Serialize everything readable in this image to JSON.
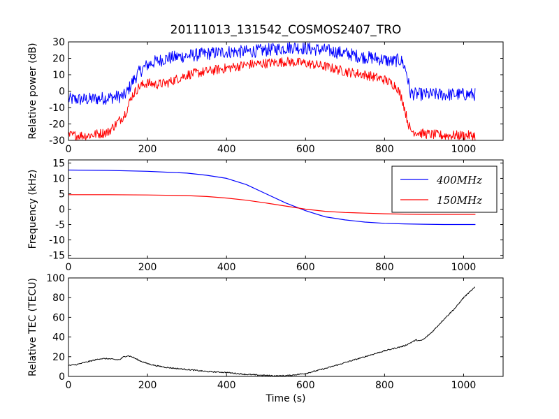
{
  "title": "20111013_131542_COSMOS2407_TRO",
  "colors": {
    "blue": "#0000ff",
    "red": "#ff0000",
    "black": "#000000"
  },
  "chart_data": [
    {
      "type": "line",
      "ylabel": "Relative power (dB)",
      "xlim": [
        0,
        1100
      ],
      "ylim": [
        -30,
        30
      ],
      "xticks": [
        "0",
        "200",
        "400",
        "600",
        "800",
        "1000"
      ],
      "yticks": [
        "30",
        "20",
        "10",
        "0",
        "-10",
        "-20",
        "-30"
      ],
      "grid": false,
      "series": [
        {
          "color": "blue",
          "noise": 4,
          "x": [
            0,
            50,
            100,
            140,
            150,
            160,
            180,
            200,
            220,
            250,
            280,
            320,
            360,
            400,
            450,
            500,
            540,
            570,
            600,
            650,
            700,
            740,
            780,
            800,
            820,
            835,
            845,
            855,
            865,
            880,
            900,
            950,
            1000,
            1030
          ],
          "y": [
            -5,
            -5,
            -4,
            -3,
            0,
            5,
            12,
            16,
            18,
            20,
            21,
            22,
            23,
            24,
            24,
            25,
            26,
            27,
            26,
            25,
            23,
            21,
            20,
            19,
            18,
            19,
            18,
            12,
            -1,
            -2,
            -2,
            -2,
            -2,
            -2
          ]
        },
        {
          "color": "red",
          "noise": 3,
          "x": [
            0,
            50,
            100,
            120,
            140,
            150,
            160,
            180,
            200,
            220,
            250,
            280,
            300,
            350,
            400,
            450,
            500,
            550,
            600,
            650,
            700,
            750,
            800,
            830,
            845,
            855,
            865,
            880,
            900,
            950,
            1000,
            1030
          ],
          "y": [
            -27,
            -27,
            -25,
            -20,
            -15,
            -10,
            -3,
            3,
            5,
            4,
            5,
            8,
            10,
            12,
            14,
            16,
            17,
            18,
            17,
            15,
            12,
            10,
            7,
            3,
            -5,
            -15,
            -24,
            -25,
            -26,
            -27,
            -27,
            -27
          ]
        }
      ]
    },
    {
      "type": "line",
      "ylabel": "Frequency (kHz)",
      "xlim": [
        0,
        1100
      ],
      "ylim": [
        -16,
        16
      ],
      "xticks": [
        "0",
        "200",
        "400",
        "600",
        "800",
        "1000"
      ],
      "yticks": [
        "15",
        "10",
        "5",
        "0",
        "-5",
        "-10",
        "-15"
      ],
      "grid": false,
      "legend": "top-right",
      "series": [
        {
          "name": "400MHz",
          "color": "blue",
          "x": [
            0,
            100,
            200,
            250,
            300,
            350,
            400,
            450,
            500,
            550,
            600,
            650,
            700,
            750,
            800,
            850,
            900,
            950,
            1000,
            1030
          ],
          "y": [
            12.7,
            12.6,
            12.3,
            12.0,
            11.7,
            11.0,
            10.0,
            8.0,
            5.0,
            2.0,
            -0.5,
            -2.5,
            -3.5,
            -4.2,
            -4.6,
            -4.8,
            -4.9,
            -5.0,
            -5.0,
            -5.0
          ]
        },
        {
          "name": "150MHz",
          "color": "red",
          "x": [
            0,
            100,
            200,
            300,
            350,
            400,
            450,
            500,
            550,
            600,
            650,
            700,
            750,
            800,
            850,
            900,
            950,
            1000,
            1030
          ],
          "y": [
            4.7,
            4.7,
            4.6,
            4.4,
            4.1,
            3.6,
            2.9,
            2.0,
            1.0,
            0.0,
            -0.7,
            -1.1,
            -1.3,
            -1.5,
            -1.6,
            -1.7,
            -1.7,
            -1.7,
            -1.7
          ]
        }
      ]
    },
    {
      "type": "line",
      "ylabel": "Relative TEC (TECU)",
      "xlabel": "Time (s)",
      "xlim": [
        0,
        1100
      ],
      "ylim": [
        0,
        100
      ],
      "xticks": [
        "0",
        "200",
        "400",
        "600",
        "800",
        "1000"
      ],
      "yticks": [
        "100",
        "80",
        "60",
        "40",
        "20",
        "0"
      ],
      "grid": false,
      "series": [
        {
          "color": "black",
          "noise": 0.6,
          "x": [
            0,
            20,
            40,
            60,
            80,
            100,
            120,
            130,
            140,
            150,
            160,
            180,
            200,
            220,
            250,
            300,
            350,
            400,
            450,
            500,
            530,
            560,
            600,
            650,
            700,
            750,
            800,
            850,
            870,
            880,
            890,
            900,
            920,
            950,
            980,
            1000,
            1030
          ],
          "y": [
            11,
            12,
            14,
            16,
            18,
            18,
            17,
            17,
            20,
            21,
            20,
            16,
            13,
            11,
            9,
            7,
            5,
            4,
            2,
            1,
            0.5,
            1,
            3,
            8,
            14,
            20,
            26,
            31,
            35,
            37,
            36,
            38,
            45,
            58,
            70,
            80,
            91
          ]
        }
      ]
    }
  ]
}
